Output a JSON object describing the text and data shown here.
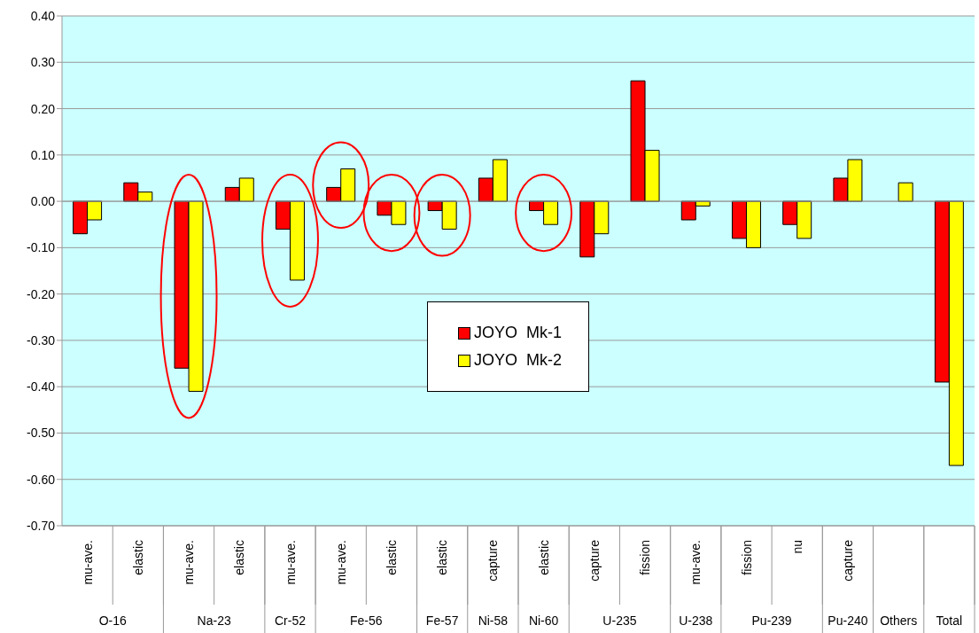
{
  "chart_data": {
    "type": "bar",
    "categories": [
      "mu-ave.",
      "elastic",
      "mu-ave.",
      "elastic",
      "mu-ave.",
      "mu-ave.",
      "elastic",
      "elastic",
      "capture",
      "elastic",
      "capture",
      "fission",
      "mu-ave.",
      "fission",
      "nu",
      "capture",
      null,
      null
    ],
    "annotations": [
      "O-16",
      "Na-23",
      "Cr-52",
      "Fe-56",
      "Fe-57",
      "Ni-58",
      "Ni-60",
      "U-235",
      "U-238",
      "Pu-239",
      "Pu-240",
      "Others",
      "Total"
    ],
    "series": [
      {
        "name": "JOYO  Mk-1",
        "color": "#ff0000",
        "values": [
          -0.07,
          0.04,
          -0.36,
          0.03,
          -0.06,
          0.03,
          -0.03,
          -0.02,
          0.05,
          -0.02,
          -0.12,
          0.26,
          -0.04,
          -0.08,
          -0.05,
          0.05,
          null,
          -0.39
        ]
      },
      {
        "name": "JOYO  Mk-2",
        "color": "#ffff00",
        "values": [
          -0.04,
          0.02,
          -0.41,
          0.05,
          -0.17,
          0.07,
          -0.05,
          -0.06,
          0.09,
          -0.05,
          -0.07,
          0.11,
          -0.01,
          -0.1,
          -0.08,
          0.09,
          0.04,
          -0.57
        ]
      }
    ],
    "ylim": [
      -0.7,
      0.4
    ],
    "yticks": [
      {
        "value": 0.4,
        "label": "0.40"
      },
      {
        "value": 0.3,
        "label": "0.30"
      },
      {
        "value": 0.2,
        "label": "0.20"
      },
      {
        "value": 0.1,
        "label": "0.10"
      },
      {
        "value": 0,
        "label": "0.00"
      },
      {
        "value": -0.1,
        "label": "-0.10"
      },
      {
        "value": -0.2,
        "label": "-0.20"
      },
      {
        "value": -0.3,
        "label": "-0.30"
      },
      {
        "value": -0.4,
        "label": "-0.40"
      },
      {
        "value": -0.5,
        "label": "-0.50"
      },
      {
        "value": -0.6,
        "label": "-0.60"
      },
      {
        "value": -0.7,
        "label": "-0.70"
      }
    ],
    "grid": "y",
    "legend": "center"
  }
}
